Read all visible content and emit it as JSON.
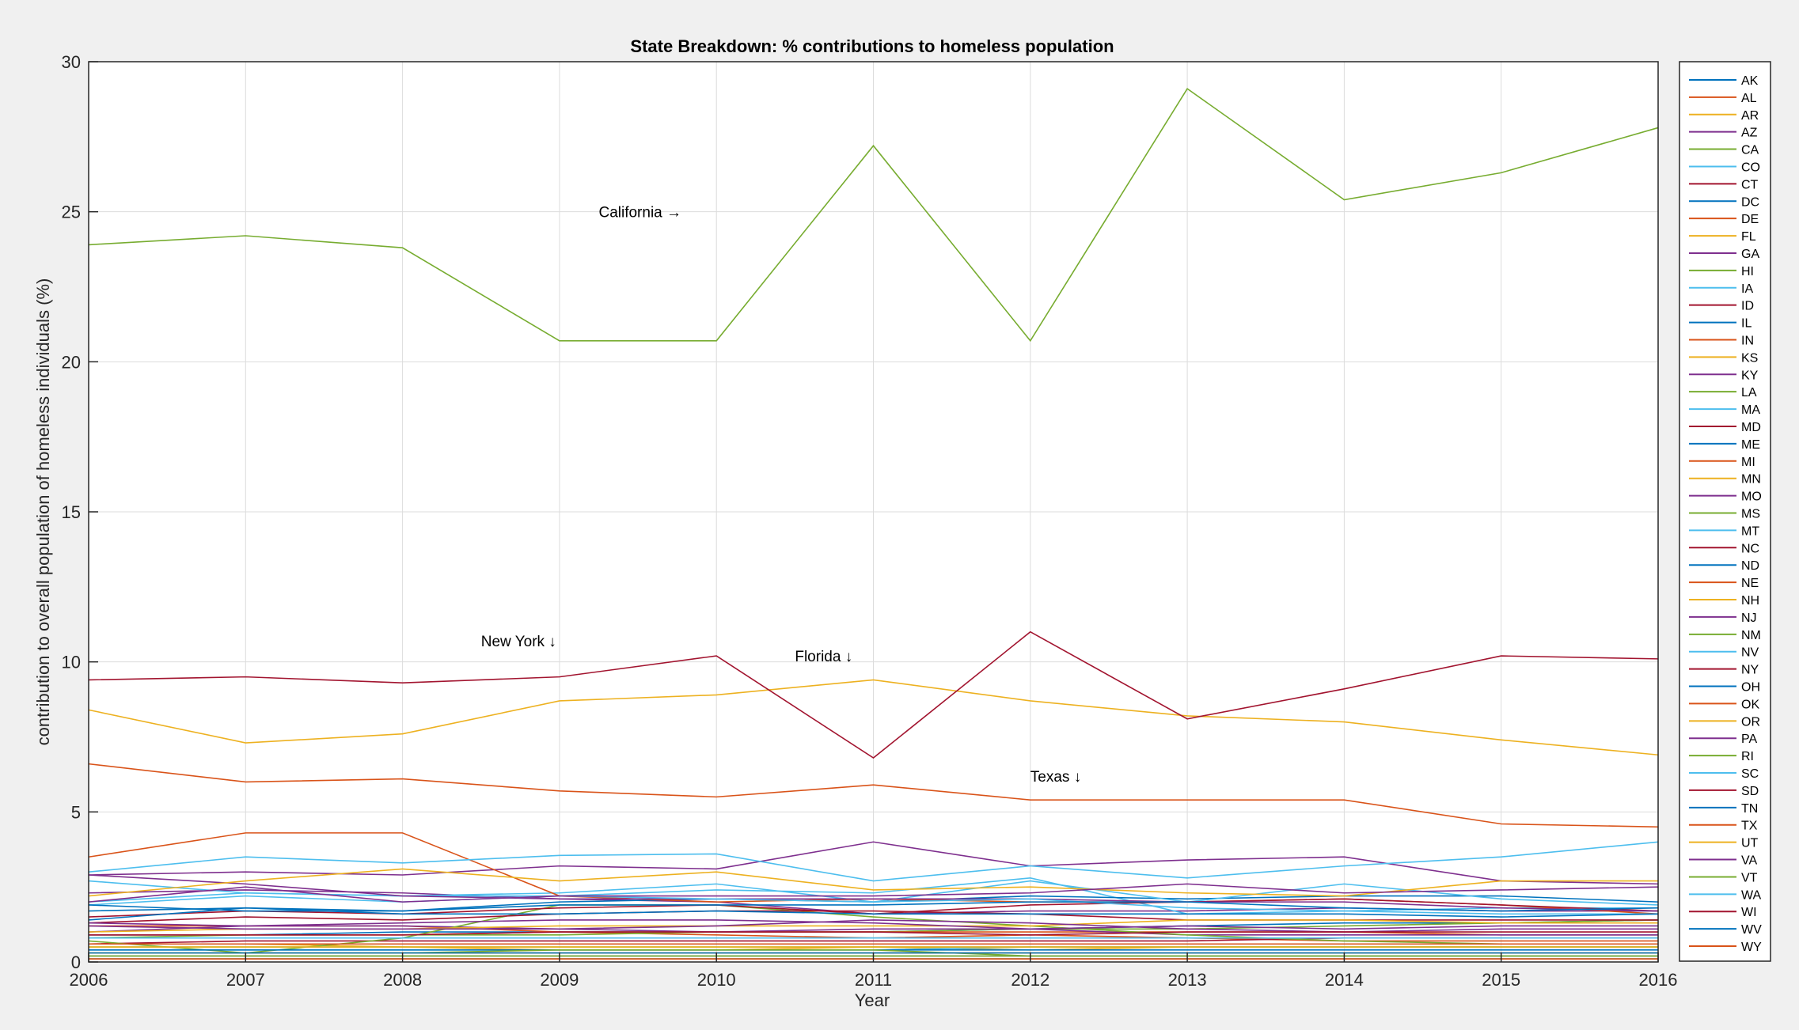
{
  "chart_data": {
    "type": "line",
    "title": "State Breakdown: % contributions to homeless population",
    "xlabel": "Year",
    "ylabel": "contribution to overall population of homeless individuals (%)",
    "xlim": [
      2006,
      2016
    ],
    "ylim": [
      0,
      30
    ],
    "xticks": [
      2006,
      2007,
      2008,
      2009,
      2010,
      2011,
      2012,
      2013,
      2014,
      2015,
      2016
    ],
    "yticks": [
      0,
      5,
      10,
      15,
      20,
      25,
      30
    ],
    "grid": true,
    "legend_placement": "outside-right",
    "colors": [
      "#0072BD",
      "#D95319",
      "#EDB120",
      "#7E2F8E",
      "#77AC30",
      "#4DBEEE",
      "#A2142F"
    ],
    "x": [
      2006,
      2007,
      2008,
      2009,
      2010,
      2011,
      2012,
      2013,
      2014,
      2015,
      2016
    ],
    "series": [
      {
        "name": "AK",
        "values": [
          0.3,
          0.3,
          0.3,
          0.3,
          0.3,
          0.3,
          0.3,
          0.3,
          0.3,
          0.3,
          0.3
        ]
      },
      {
        "name": "AL",
        "values": [
          0.9,
          0.9,
          0.9,
          1.0,
          0.9,
          0.8,
          0.9,
          0.8,
          0.7,
          0.7,
          0.7
        ]
      },
      {
        "name": "AR",
        "values": [
          0.6,
          0.6,
          0.5,
          0.4,
          0.4,
          0.5,
          0.4,
          0.5,
          0.5,
          0.5,
          0.5
        ]
      },
      {
        "name": "AZ",
        "values": [
          2.3,
          2.4,
          2.3,
          2.1,
          2.0,
          1.6,
          1.7,
          1.7,
          1.8,
          1.7,
          1.7
        ]
      },
      {
        "name": "CA",
        "values": [
          23.9,
          24.2,
          23.8,
          20.7,
          20.7,
          27.2,
          20.7,
          29.1,
          25.4,
          26.3,
          27.8
        ]
      },
      {
        "name": "CO",
        "values": [
          2.7,
          2.3,
          2.2,
          2.2,
          2.4,
          2.3,
          2.8,
          1.6,
          1.7,
          1.8,
          1.8
        ]
      },
      {
        "name": "CT",
        "values": [
          0.6,
          0.7,
          0.7,
          0.7,
          0.7,
          0.7,
          0.7,
          0.7,
          0.8,
          0.8,
          0.8
        ]
      },
      {
        "name": "DC",
        "values": [
          0.9,
          0.9,
          1.0,
          1.0,
          1.0,
          1.0,
          1.1,
          1.2,
          1.3,
          1.3,
          1.4
        ]
      },
      {
        "name": "DE",
        "values": [
          0.2,
          0.2,
          0.2,
          0.2,
          0.2,
          0.2,
          0.2,
          0.2,
          0.2,
          0.2,
          0.2
        ]
      },
      {
        "name": "FL",
        "values": [
          8.4,
          7.3,
          7.6,
          8.7,
          8.9,
          9.4,
          8.7,
          8.2,
          8.0,
          7.4,
          6.9
        ]
      },
      {
        "name": "GA",
        "values": [
          2.9,
          3.0,
          2.9,
          3.2,
          3.1,
          4.0,
          3.2,
          3.4,
          3.5,
          2.7,
          2.6
        ]
      },
      {
        "name": "HI",
        "values": [
          0.8,
          0.9,
          0.9,
          0.9,
          1.0,
          1.0,
          1.1,
          1.1,
          1.2,
          1.3,
          1.4
        ]
      },
      {
        "name": "IA",
        "values": [
          0.4,
          0.4,
          0.4,
          0.4,
          0.4,
          0.4,
          0.5,
          0.5,
          0.5,
          0.5,
          0.5
        ]
      },
      {
        "name": "ID",
        "values": [
          0.3,
          0.3,
          0.3,
          0.3,
          0.3,
          0.3,
          0.3,
          0.3,
          0.3,
          0.3,
          0.3
        ]
      },
      {
        "name": "IL",
        "values": [
          1.7,
          1.8,
          1.7,
          2.0,
          2.1,
          2.0,
          2.2,
          2.1,
          2.2,
          2.2,
          2.0
        ]
      },
      {
        "name": "IN",
        "values": [
          1.2,
          1.2,
          1.2,
          1.0,
          1.0,
          1.0,
          1.0,
          1.0,
          1.0,
          0.9,
          0.9
        ]
      },
      {
        "name": "KS",
        "values": [
          0.3,
          0.3,
          0.3,
          0.3,
          0.3,
          0.3,
          0.3,
          0.3,
          0.3,
          0.3,
          0.3
        ]
      },
      {
        "name": "KY",
        "values": [
          1.0,
          1.2,
          1.2,
          1.1,
          1.0,
          1.1,
          1.1,
          0.9,
          0.9,
          0.9,
          0.9
        ]
      },
      {
        "name": "LA",
        "values": [
          0.7,
          0.3,
          0.8,
          1.9,
          1.9,
          1.5,
          1.2,
          0.9,
          0.7,
          0.6,
          0.6
        ]
      },
      {
        "name": "MA",
        "values": [
          2.0,
          2.3,
          2.2,
          2.3,
          2.6,
          2.0,
          2.7,
          2.0,
          2.6,
          2.1,
          1.9
        ]
      },
      {
        "name": "MD",
        "values": [
          1.3,
          1.5,
          1.4,
          1.6,
          1.7,
          1.7,
          1.6,
          1.4,
          1.4,
          1.4,
          1.4
        ]
      },
      {
        "name": "ME",
        "values": [
          0.4,
          0.4,
          0.4,
          0.4,
          0.4,
          0.4,
          0.4,
          0.4,
          0.4,
          0.4,
          0.4
        ]
      },
      {
        "name": "MI",
        "values": [
          3.5,
          4.3,
          4.3,
          2.2,
          2.0,
          2.1,
          2.0,
          2.0,
          2.1,
          1.9,
          1.6
        ]
      },
      {
        "name": "MN",
        "values": [
          1.0,
          1.1,
          1.1,
          1.2,
          1.2,
          1.2,
          1.2,
          1.4,
          1.4,
          1.3,
          1.3
        ]
      },
      {
        "name": "MO",
        "values": [
          1.2,
          1.1,
          1.1,
          1.1,
          1.2,
          1.4,
          1.3,
          1.1,
          1.0,
          1.1,
          1.1
        ]
      },
      {
        "name": "MS",
        "values": [
          0.3,
          0.3,
          0.3,
          0.4,
          0.4,
          0.4,
          0.2,
          0.2,
          0.2,
          0.2,
          0.2
        ]
      },
      {
        "name": "MT",
        "values": [
          0.2,
          0.2,
          0.2,
          0.2,
          0.2,
          0.2,
          0.2,
          0.2,
          0.2,
          0.2,
          0.2
        ]
      },
      {
        "name": "NC",
        "values": [
          1.5,
          1.7,
          1.6,
          1.8,
          1.9,
          1.6,
          1.9,
          2.0,
          2.1,
          1.9,
          1.7
        ]
      },
      {
        "name": "ND",
        "values": [
          0.1,
          0.1,
          0.1,
          0.1,
          0.1,
          0.1,
          0.1,
          0.1,
          0.1,
          0.1,
          0.1
        ]
      },
      {
        "name": "NE",
        "values": [
          0.6,
          0.6,
          0.6,
          0.6,
          0.6,
          0.6,
          0.6,
          0.6,
          0.6,
          0.6,
          0.6
        ]
      },
      {
        "name": "NH",
        "values": [
          0.3,
          0.3,
          0.3,
          0.3,
          0.3,
          0.3,
          0.3,
          0.3,
          0.3,
          0.3,
          0.3
        ]
      },
      {
        "name": "NJ",
        "values": [
          2.9,
          2.6,
          2.2,
          2.1,
          2.1,
          2.1,
          2.1,
          2.0,
          2.0,
          1.8,
          1.7
        ]
      },
      {
        "name": "NM",
        "values": [
          0.5,
          0.5,
          0.5,
          0.5,
          0.5,
          0.5,
          0.5,
          0.5,
          0.5,
          0.5,
          0.5
        ]
      },
      {
        "name": "NV",
        "values": [
          1.9,
          2.2,
          2.0,
          2.2,
          2.1,
          2.0,
          2.1,
          1.8,
          1.7,
          1.6,
          1.6
        ]
      },
      {
        "name": "NY",
        "values": [
          9.4,
          9.5,
          9.3,
          9.5,
          10.2,
          6.8,
          11.0,
          8.1,
          9.1,
          10.2,
          10.1
        ]
      },
      {
        "name": "OH",
        "values": [
          1.9,
          1.7,
          1.7,
          1.9,
          1.9,
          1.9,
          2.0,
          2.0,
          1.8,
          1.7,
          1.8
        ]
      },
      {
        "name": "OK",
        "values": [
          0.6,
          0.6,
          0.6,
          0.6,
          0.6,
          0.6,
          0.6,
          0.6,
          0.6,
          0.6,
          0.6
        ]
      },
      {
        "name": "OR",
        "values": [
          2.2,
          2.7,
          3.1,
          2.7,
          3.0,
          2.4,
          2.5,
          2.3,
          2.2,
          2.7,
          2.7
        ]
      },
      {
        "name": "PA",
        "values": [
          2.0,
          2.5,
          2.0,
          2.2,
          2.2,
          2.2,
          2.3,
          2.6,
          2.3,
          2.4,
          2.5
        ]
      },
      {
        "name": "RI",
        "values": [
          0.2,
          0.2,
          0.2,
          0.2,
          0.2,
          0.2,
          0.2,
          0.2,
          0.2,
          0.2,
          0.2
        ]
      },
      {
        "name": "SC",
        "values": [
          0.8,
          0.8,
          0.8,
          0.8,
          0.8,
          0.8,
          0.8,
          0.8,
          0.8,
          0.8,
          0.8
        ]
      },
      {
        "name": "SD",
        "values": [
          0.1,
          0.1,
          0.1,
          0.1,
          0.1,
          0.1,
          0.1,
          0.1,
          0.1,
          0.1,
          0.1
        ]
      },
      {
        "name": "TN",
        "values": [
          1.4,
          1.8,
          1.6,
          1.6,
          1.7,
          1.6,
          1.6,
          1.6,
          1.6,
          1.5,
          1.6
        ]
      },
      {
        "name": "TX",
        "values": [
          6.6,
          6.0,
          6.1,
          5.7,
          5.5,
          5.9,
          5.4,
          5.4,
          5.4,
          4.6,
          4.5
        ]
      },
      {
        "name": "UT",
        "values": [
          0.5,
          0.5,
          0.5,
          0.5,
          0.5,
          0.5,
          0.5,
          0.5,
          0.5,
          0.5,
          0.5
        ]
      },
      {
        "name": "VA",
        "values": [
          1.3,
          1.2,
          1.3,
          1.4,
          1.4,
          1.3,
          1.1,
          1.2,
          1.1,
          1.2,
          1.2
        ]
      },
      {
        "name": "VT",
        "values": [
          0.1,
          0.1,
          0.1,
          0.1,
          0.1,
          0.1,
          0.1,
          0.1,
          0.1,
          0.1,
          0.1
        ]
      },
      {
        "name": "WA",
        "values": [
          3.0,
          3.5,
          3.3,
          3.55,
          3.6,
          2.7,
          3.2,
          2.8,
          3.2,
          3.5,
          4.0
        ]
      },
      {
        "name": "WI",
        "values": [
          0.9,
          0.9,
          0.9,
          1.0,
          1.0,
          1.0,
          0.9,
          1.0,
          1.0,
          1.0,
          1.0
        ]
      },
      {
        "name": "WV",
        "values": [
          0.3,
          0.3,
          0.3,
          0.3,
          0.3,
          0.3,
          0.3,
          0.3,
          0.3,
          0.3,
          0.3
        ]
      },
      {
        "name": "WY",
        "values": [
          0.1,
          0.1,
          0.1,
          0.1,
          0.1,
          0.1,
          0.1,
          0.1,
          0.1,
          0.1,
          0.1
        ]
      }
    ],
    "annotations": [
      {
        "text": "California →",
        "x": 2009.25,
        "y": 25.0
      },
      {
        "text": "New York ↓",
        "x": 2008.5,
        "y": 10.7
      },
      {
        "text": "Florida ↓",
        "x": 2010.5,
        "y": 10.2
      },
      {
        "text": "Texas ↓",
        "x": 2012.0,
        "y": 6.2
      }
    ]
  }
}
